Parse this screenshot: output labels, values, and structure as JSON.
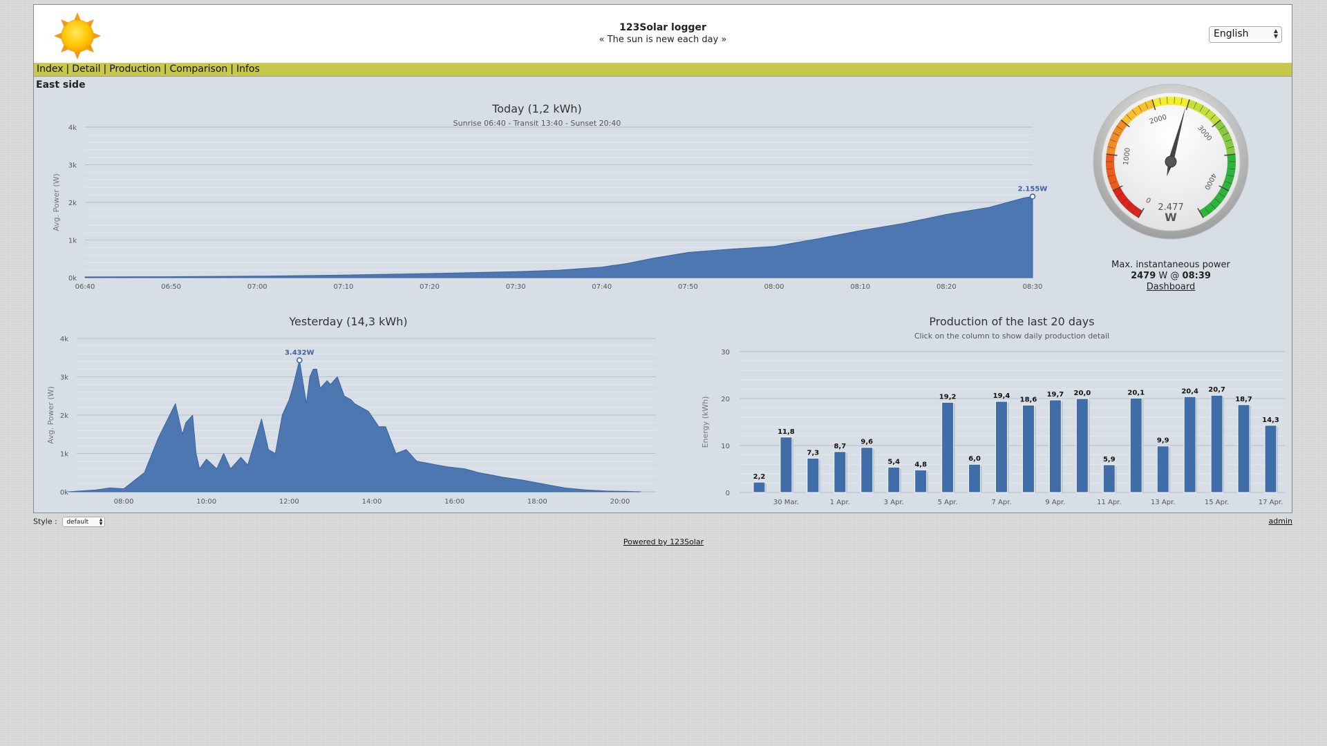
{
  "app": {
    "title": "123Solar logger",
    "subtitle": "« The sun is new each day »",
    "language": "English"
  },
  "nav": {
    "items": [
      "Index",
      "Detail",
      "Production",
      "Comparison",
      "Infos"
    ]
  },
  "section_title": "East side",
  "gauge": {
    "value": 2477,
    "value_text": "2.477",
    "unit": "W",
    "min": 0,
    "max": 4500,
    "ticks": [
      "0",
      "1000",
      "2000",
      "3000",
      "4000"
    ]
  },
  "max_power": {
    "label": "Max. instantaneous power",
    "value": "2479",
    "unit_at": "W @",
    "time": "08:39",
    "link": "Dashboard"
  },
  "footer": {
    "style_label": "Style :",
    "style_value": "default",
    "admin": "admin",
    "powered": "Powered by 123Solar"
  },
  "colors": {
    "area": "#4d77b1",
    "bar": "#3e6da8",
    "nav": "#c8c84a"
  },
  "chart_data": [
    {
      "type": "area",
      "title": "Today (1,2 kWh)",
      "subtitle": "Sunrise 06:40 - Transit 13:40 - Sunset 20:40",
      "ylabel": "Avg. Power (W)",
      "ylim": [
        0,
        4000
      ],
      "yticks": [
        "0k",
        "1k",
        "2k",
        "3k",
        "4k"
      ],
      "xrange_minutes": [
        400,
        510
      ],
      "xtick_labels": [
        "06:40",
        "06:50",
        "07:00",
        "07:10",
        "07:20",
        "07:30",
        "07:40",
        "07:50",
        "08:00",
        "08:10",
        "08:20",
        "08:30"
      ],
      "x": [
        400,
        410,
        420,
        430,
        440,
        450,
        455,
        460,
        463,
        466,
        470,
        475,
        480,
        485,
        490,
        495,
        500,
        505,
        509,
        510
      ],
      "values": [
        20,
        25,
        40,
        70,
        110,
        160,
        200,
        280,
        380,
        520,
        670,
        760,
        830,
        1030,
        1250,
        1440,
        1680,
        1870,
        2120,
        2155
      ],
      "annotation": "2.155W"
    },
    {
      "type": "area",
      "title": "Yesterday (14,3 kWh)",
      "ylabel": "Avg. Power (W)",
      "ylim": [
        0,
        4000
      ],
      "yticks": [
        "0k",
        "1k",
        "2k",
        "3k",
        "4k"
      ],
      "xrange_minutes": [
        390,
        1240
      ],
      "xtick_labels": [
        "08:00",
        "10:00",
        "12:00",
        "14:00",
        "16:00",
        "18:00",
        "20:00"
      ],
      "x": [
        400,
        440,
        460,
        480,
        510,
        530,
        555,
        565,
        570,
        580,
        585,
        590,
        600,
        615,
        625,
        635,
        650,
        660,
        680,
        690,
        700,
        710,
        720,
        725,
        735,
        745,
        750,
        755,
        760,
        765,
        770,
        775,
        780,
        790,
        800,
        810,
        815,
        825,
        835,
        850,
        860,
        875,
        890,
        905,
        920,
        935,
        950,
        965,
        975,
        985,
        995,
        1010,
        1030,
        1060,
        1090,
        1120,
        1150,
        1180,
        1210,
        1230
      ],
      "values": [
        0,
        50,
        100,
        80,
        500,
        1400,
        2300,
        1500,
        1800,
        2000,
        1000,
        600,
        850,
        600,
        1000,
        600,
        900,
        700,
        1900,
        1100,
        1000,
        2000,
        2400,
        2700,
        3432,
        2300,
        3000,
        3200,
        3200,
        2700,
        2800,
        2900,
        2800,
        3000,
        2500,
        2400,
        2300,
        2200,
        2100,
        1700,
        1700,
        1000,
        1100,
        800,
        750,
        700,
        650,
        620,
        600,
        550,
        500,
        450,
        380,
        300,
        200,
        100,
        50,
        20,
        10,
        0
      ],
      "annotation": "3.432W"
    },
    {
      "type": "bar",
      "title": "Production of the last 20 days",
      "subtitle": "Click on the column to show daily production detail",
      "ylabel": "Energy (kWh)",
      "ylim": [
        0,
        30
      ],
      "yticks": [
        "0",
        "10",
        "20",
        "30"
      ],
      "xtick_labels": [
        "30 Mar.",
        "1 Apr.",
        "3 Apr.",
        "5 Apr.",
        "7 Apr.",
        "9 Apr.",
        "11 Apr.",
        "13 Apr.",
        "15 Apr.",
        "17 Apr."
      ],
      "values": [
        2.2,
        11.8,
        7.3,
        8.7,
        9.6,
        5.4,
        4.8,
        19.2,
        6.0,
        19.4,
        18.6,
        19.7,
        20.0,
        5.9,
        20.1,
        9.9,
        20.4,
        20.7,
        18.7,
        14.3
      ],
      "labels": [
        "2,2",
        "11,8",
        "7,3",
        "8,7",
        "9,6",
        "5,4",
        "4,8",
        "19,2",
        "6,0",
        "19,4",
        "18,6",
        "19,7",
        "20,0",
        "5,9",
        "20,1",
        "9,9",
        "20,4",
        "20,7",
        "18,7",
        "14,3"
      ]
    }
  ]
}
